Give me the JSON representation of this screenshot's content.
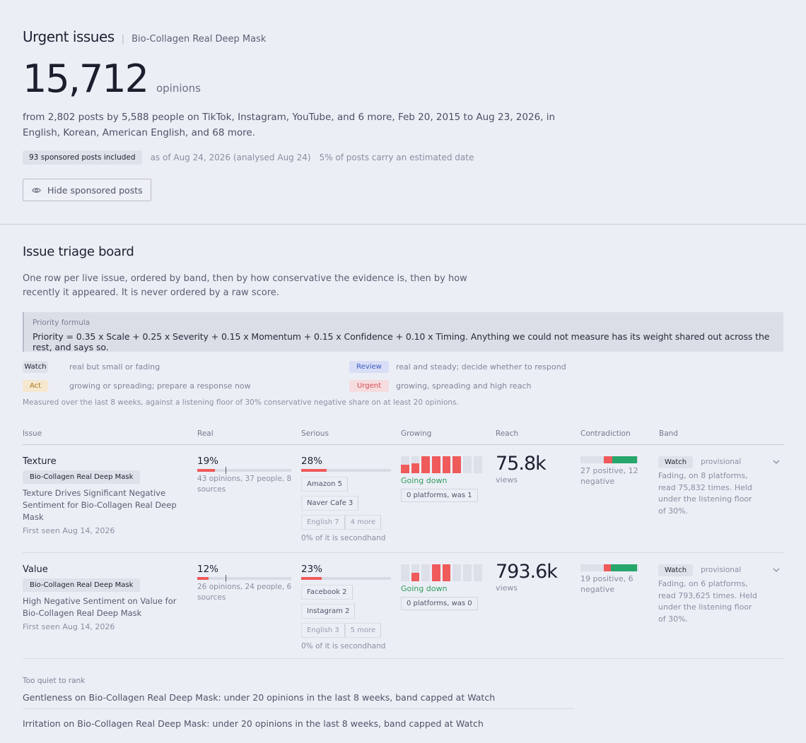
{
  "header": {
    "title": "Urgent issues",
    "separator": "|",
    "product": "Bio-Collagen Real Deep Mask",
    "opinions_count": "15,712",
    "opinions_unit": "opinions",
    "summary": "from 2,802 posts by 5,588 people on TikTok, Instagram, YouTube, and 6 more, Feb 20, 2015 to Aug 23, 2026, in English, Korean, American English, and 68 more.",
    "sponsored_pill": "93 sponsored posts included",
    "as_of": "as of Aug 24, 2026 (analysed Aug 24)",
    "estimated": "5% of posts carry an estimated date",
    "hide_button": "Hide sponsored posts"
  },
  "triage": {
    "title": "Issue triage board",
    "description": "One row per live issue, ordered by band, then by how conservative the evidence is, then by how recently it appeared. It is never ordered by a raw score.",
    "formula_label": "Priority formula",
    "formula": "Priority = 0.35 x Scale + 0.25 x Severity + 0.15 x Momentum + 0.15 x Confidence + 0.10 x Timing. Anything we could not measure has its weight shared out across the rest, and says so.",
    "legend": [
      {
        "band": "Watch",
        "desc": "real but small or fading",
        "style": "watch"
      },
      {
        "band": "Review",
        "desc": "real and steady; decide whether to respond",
        "style": "review"
      },
      {
        "band": "Act",
        "desc": "growing or spreading; prepare a response now",
        "style": "act"
      },
      {
        "band": "Urgent",
        "desc": "growing, spreading and high reach",
        "style": "urgent"
      }
    ],
    "measured_note": "Measured over the last 8 weeks, against a listening floor of 30% conservative negative share on at least 20 opinions."
  },
  "table": {
    "columns": [
      "Issue",
      "Real",
      "Serious",
      "Growing",
      "Reach",
      "Contradiction",
      "Band"
    ],
    "rows": [
      {
        "issue": "Texture",
        "tag": "Bio-Collagen Real Deep Mask",
        "desc": "Texture Drives Significant Negative Sentiment for Bio-Collagen Real Deep Mask",
        "first_seen": "First seen Aug 14, 2026",
        "real_pct": "19%",
        "real_fill": 0.19,
        "real_detail": "43 opinions, 37 people, 8 sources",
        "serious_pct": "28%",
        "serious_fill": 0.28,
        "sources": [
          "Amazon 5",
          "Naver Cafe 3"
        ],
        "langs": [
          "English 7",
          "4 more"
        ],
        "secondhand": "0% of it is secondhand",
        "weekly": [
          0.5,
          0.6,
          1,
          1,
          1,
          1,
          0,
          0
        ],
        "trend": "Going down",
        "platforms": "0 platforms, was 1",
        "reach": "75.8k",
        "reach_unit": "views",
        "contradiction_neg": 0.15,
        "contradiction_pos": 0.42,
        "contradiction_text": "27 positive, 12 negative",
        "band": "Watch",
        "band_status": "provisional",
        "band_note": "Fading, on 8 platforms, read 75,832 times. Held under the listening floor of 30%."
      },
      {
        "issue": "Value",
        "tag": "Bio-Collagen Real Deep Mask",
        "desc": "High Negative Sentiment on Value for Bio-Collagen Real Deep Mask",
        "first_seen": "First seen Aug 14, 2026",
        "real_pct": "12%",
        "real_fill": 0.12,
        "real_detail": "26 opinions, 24 people, 6 sources",
        "serious_pct": "23%",
        "serious_fill": 0.23,
        "sources": [
          "Facebook 2",
          "Instagram 2"
        ],
        "langs": [
          "English 3",
          "5 more"
        ],
        "secondhand": "0% of it is secondhand",
        "weekly": [
          0,
          0.5,
          0,
          1,
          1,
          0,
          0,
          0
        ],
        "trend": "Going down",
        "platforms": "0 platforms, was 0",
        "reach": "793.6k",
        "reach_unit": "views",
        "contradiction_neg": 0.13,
        "contradiction_pos": 0.45,
        "contradiction_text": "19 positive, 6 negative",
        "band": "Watch",
        "band_status": "provisional",
        "band_note": "Fading, on 6 platforms, read 793,625 times. Held under the listening floor of 30%."
      }
    ]
  },
  "quiet": {
    "title": "Too quiet to rank",
    "items": [
      "Gentleness on Bio-Collagen Real Deep Mask: under 20 opinions in the last 8 weeks, band capped at Watch",
      "Irritation on Bio-Collagen Real Deep Mask: under 20 opinions in the last 8 weeks, band capped at Watch"
    ]
  },
  "colors": {
    "negative": "#ef5a5a",
    "positive": "#26a66a",
    "going_down": "#2f9e5c",
    "background": "#eceef6"
  }
}
